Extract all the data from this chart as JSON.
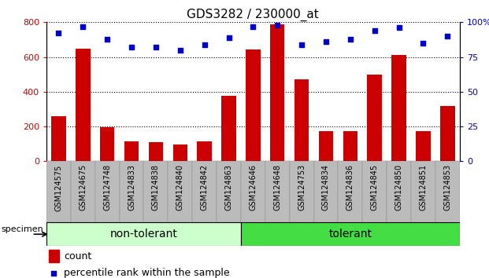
{
  "title": "GDS3282 / 230000_at",
  "samples": [
    "GSM124575",
    "GSM124675",
    "GSM124748",
    "GSM124833",
    "GSM124838",
    "GSM124840",
    "GSM124842",
    "GSM124863",
    "GSM124646",
    "GSM124648",
    "GSM124753",
    "GSM124834",
    "GSM124836",
    "GSM124845",
    "GSM124850",
    "GSM124851",
    "GSM124853"
  ],
  "counts": [
    260,
    650,
    195,
    115,
    108,
    95,
    115,
    375,
    645,
    790,
    470,
    175,
    175,
    500,
    610,
    175,
    320
  ],
  "percentiles": [
    92,
    97,
    88,
    82,
    82,
    80,
    84,
    89,
    97,
    98,
    84,
    86,
    88,
    94,
    96,
    85,
    90
  ],
  "non_tolerant_count": 8,
  "tolerant_count": 9,
  "group_labels": [
    "non-tolerant",
    "tolerant"
  ],
  "ylim_left": [
    0,
    800
  ],
  "ylim_right": [
    0,
    100
  ],
  "yticks_left": [
    0,
    200,
    400,
    600,
    800
  ],
  "yticks_right": [
    0,
    25,
    50,
    75,
    100
  ],
  "bar_color": "#cc0000",
  "scatter_color": "#0000cc",
  "non_tolerant_bg": "#ccffcc",
  "tolerant_bg": "#44dd44",
  "tick_area_bg": "#bbbbbb",
  "legend_bar_label": "count",
  "legend_scatter_label": "percentile rank within the sample",
  "specimen_label": "specimen",
  "title_fontsize": 11,
  "axis_fontsize": 8,
  "legend_fontsize": 9,
  "group_fontsize": 10,
  "xtick_fontsize": 7
}
